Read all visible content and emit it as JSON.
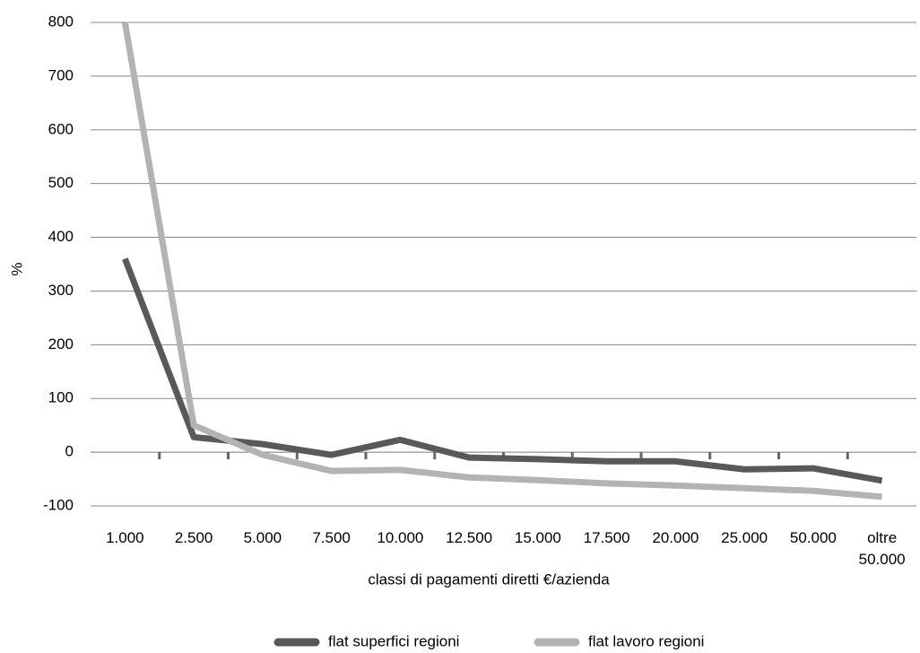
{
  "chart_data": {
    "type": "line",
    "y_label": "%",
    "x_label": "classi di pagamenti diretti €/azienda",
    "categories": [
      "1.000",
      "2.500",
      "5.000",
      "7.500",
      "10.000",
      "12.500",
      "15.000",
      "17.500",
      "20.000",
      "25.000",
      "50.000",
      "oltre 50.000"
    ],
    "series": [
      {
        "name": "flat superfici regioni",
        "color": "#595959",
        "values": [
          360,
          28,
          15,
          -5,
          23,
          -10,
          -13,
          -17,
          -17,
          -32,
          -30,
          -53
        ]
      },
      {
        "name": "flat lavoro regioni",
        "color": "#b3b3b3",
        "values": [
          800,
          50,
          -5,
          -35,
          -33,
          -47,
          -52,
          -58,
          -62,
          -67,
          -72,
          -83
        ]
      }
    ],
    "ylim": [
      -100,
      800
    ],
    "yticks": [
      -100,
      0,
      100,
      200,
      300,
      400,
      500,
      600,
      700,
      800
    ],
    "grid": true,
    "legend": "bottom"
  }
}
